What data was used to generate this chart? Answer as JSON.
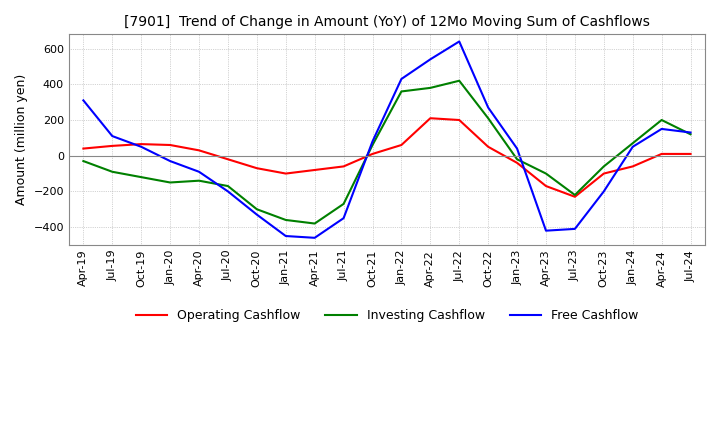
{
  "title": "[7901]  Trend of Change in Amount (YoY) of 12Mo Moving Sum of Cashflows",
  "ylabel": "Amount (million yen)",
  "ylim": [
    -500,
    680
  ],
  "yticks": [
    -400,
    -200,
    0,
    200,
    400,
    600
  ],
  "background_color": "#ffffff",
  "grid_color": "#aaaaaa",
  "x_labels": [
    "Apr-19",
    "Jul-19",
    "Oct-19",
    "Jan-20",
    "Apr-20",
    "Jul-20",
    "Oct-20",
    "Jan-21",
    "Apr-21",
    "Jul-21",
    "Oct-21",
    "Jan-22",
    "Apr-22",
    "Jul-22",
    "Oct-22",
    "Jan-23",
    "Apr-23",
    "Jul-23",
    "Oct-23",
    "Jan-24",
    "Apr-24",
    "Jul-24"
  ],
  "operating_cashflow": [
    40,
    55,
    65,
    60,
    30,
    -20,
    -70,
    -100,
    -80,
    -60,
    10,
    60,
    210,
    200,
    50,
    -40,
    -170,
    -230,
    -100,
    -60,
    10,
    10
  ],
  "investing_cashflow": [
    -30,
    -90,
    -120,
    -150,
    -140,
    -170,
    -300,
    -360,
    -380,
    -270,
    60,
    360,
    380,
    420,
    210,
    -20,
    -100,
    -220,
    -60,
    70,
    200,
    120
  ],
  "free_cashflow": [
    310,
    110,
    50,
    -30,
    -90,
    -200,
    -330,
    -450,
    -460,
    -350,
    80,
    430,
    540,
    640,
    270,
    40,
    -420,
    -410,
    -200,
    50,
    150,
    130
  ],
  "op_color": "#ff0000",
  "inv_color": "#008000",
  "free_color": "#0000ff",
  "legend_labels": [
    "Operating Cashflow",
    "Investing Cashflow",
    "Free Cashflow"
  ],
  "title_fontsize": 10,
  "axis_fontsize": 8,
  "legend_fontsize": 9
}
